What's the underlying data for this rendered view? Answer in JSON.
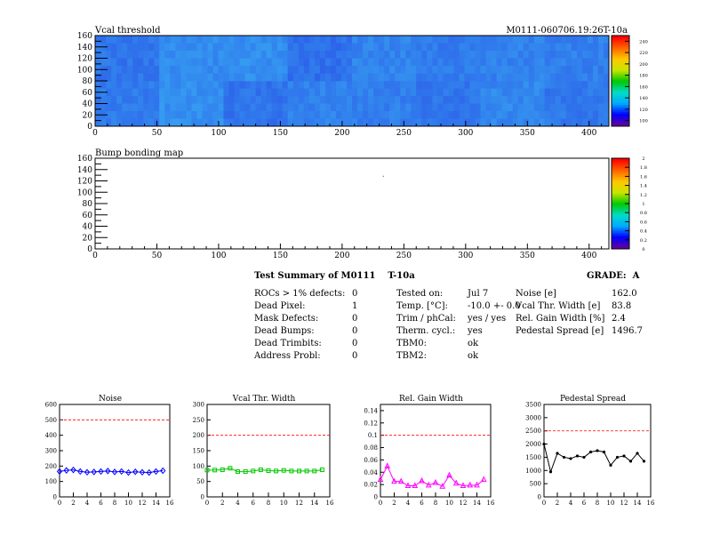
{
  "header": {
    "panel1_title": "Vcal threshold",
    "module_label": "M0111-060706.19:26T-10a",
    "panel2_title": "Bump bonding map"
  },
  "summary": {
    "title": "Test Summary of M0111",
    "test_tag": "T-10a",
    "grade_label": "GRADE:",
    "grade_value": "A",
    "col1": [
      {
        "label": "ROCs > 1% defects:",
        "value": "0"
      },
      {
        "label": "Dead Pixel:",
        "value": "1"
      },
      {
        "label": "Mask Defects:",
        "value": "0"
      },
      {
        "label": "Dead Bumps:",
        "value": "0"
      },
      {
        "label": "Dead Trimbits:",
        "value": "0"
      },
      {
        "label": "Address Probl:",
        "value": "0"
      }
    ],
    "col2": [
      {
        "label": "Tested on:",
        "value": "Jul 7"
      },
      {
        "label": "Temp. [°C]:",
        "value": "-10.0 +- 0.0"
      },
      {
        "label": "Trim / phCal:",
        "value": "yes / yes"
      },
      {
        "label": "Therm. cycl.:",
        "value": "yes"
      },
      {
        "label": "TBM0:",
        "value": "ok"
      },
      {
        "label": "TBM2:",
        "value": "ok"
      }
    ],
    "col3": [
      {
        "label": "Noise [e]",
        "value": "162.0"
      },
      {
        "label": "Vcal Thr. Width [e]",
        "value": "83.8"
      },
      {
        "label": "Rel. Gain Width [%]",
        "value": "2.4"
      },
      {
        "label": "Pedestal Spread [e]",
        "value": "1496.7"
      }
    ]
  },
  "chart_data": [
    {
      "type": "heatmap",
      "title": "Vcal threshold",
      "xlim": [
        0,
        416
      ],
      "ylim": [
        0,
        160
      ],
      "xticks": [
        "0",
        "50",
        "100",
        "150",
        "200",
        "250",
        "300",
        "350",
        "400"
      ],
      "yticks": [
        "0",
        "20",
        "40",
        "60",
        "80",
        "100",
        "120",
        "140",
        "160"
      ],
      "roc_grid": {
        "columns": 8,
        "rows": 2
      },
      "roc_intensity": [
        [
          0.45,
          0.62,
          0.38,
          0.5,
          0.48,
          0.4,
          0.55,
          0.42
        ],
        [
          0.4,
          0.58,
          0.6,
          0.35,
          0.52,
          0.45,
          0.5,
          0.48
        ]
      ],
      "colorbar_ticks": [
        "240",
        "220",
        "200",
        "180",
        "160",
        "140",
        "120",
        "100"
      ],
      "colorbar_range": [
        90,
        250
      ]
    },
    {
      "type": "heatmap",
      "title": "Bump bonding map",
      "xlim": [
        0,
        416
      ],
      "ylim": [
        0,
        160
      ],
      "xticks": [
        "0",
        "50",
        "100",
        "150",
        "200",
        "250",
        "300",
        "350",
        "400"
      ],
      "yticks": [
        "0",
        "20",
        "40",
        "60",
        "80",
        "100",
        "120",
        "140",
        "160"
      ],
      "points": [
        [
          233,
          129
        ]
      ],
      "colorbar_ticks": [
        "2",
        "1.8",
        "1.6",
        "1.4",
        "1.2",
        "1",
        "0.8",
        "0.6",
        "0.4",
        "0.2",
        "0"
      ],
      "colorbar_range": [
        0,
        2
      ]
    },
    {
      "type": "line",
      "title": "Noise",
      "color": "#0000ff",
      "marker": "diamond",
      "xlim": [
        0,
        16
      ],
      "ylim": [
        0,
        600
      ],
      "xticks": [
        "0",
        "2",
        "4",
        "6",
        "8",
        "10",
        "12",
        "14",
        "16"
      ],
      "yticks": [
        "0",
        "100",
        "200",
        "300",
        "400",
        "500",
        "600"
      ],
      "threshold": 500,
      "x": [
        0,
        1,
        2,
        3,
        4,
        5,
        6,
        7,
        8,
        9,
        10,
        11,
        12,
        13,
        14,
        15
      ],
      "values": [
        165,
        172,
        175,
        165,
        160,
        162,
        165,
        168,
        162,
        165,
        158,
        163,
        160,
        158,
        165,
        170
      ]
    },
    {
      "type": "line",
      "title": "Vcal Thr. Width",
      "color": "#00c800",
      "marker": "square",
      "xlim": [
        0,
        16
      ],
      "ylim": [
        0,
        300
      ],
      "xticks": [
        "0",
        "2",
        "4",
        "6",
        "8",
        "10",
        "12",
        "14",
        "16"
      ],
      "yticks": [
        "0",
        "50",
        "100",
        "150",
        "200",
        "250",
        "300"
      ],
      "threshold": 200,
      "x": [
        0,
        1,
        2,
        3,
        4,
        5,
        6,
        7,
        8,
        9,
        10,
        11,
        12,
        13,
        14,
        15
      ],
      "values": [
        87,
        87,
        88,
        93,
        82,
        82,
        84,
        88,
        85,
        84,
        86,
        84,
        84,
        84,
        84,
        88
      ]
    },
    {
      "type": "line",
      "title": "Rel. Gain Width",
      "color": "#ff00ff",
      "marker": "triangle",
      "xlim": [
        0,
        16
      ],
      "ylim": [
        0,
        0.15
      ],
      "xticks": [
        "0",
        "2",
        "4",
        "6",
        "8",
        "10",
        "12",
        "14",
        "16"
      ],
      "yticks": [
        "0",
        "0.02",
        "0.04",
        "0.06",
        "0.08",
        "0.1",
        "0.12",
        "0.14"
      ],
      "threshold": 0.1,
      "x": [
        0,
        1,
        2,
        3,
        4,
        5,
        6,
        7,
        8,
        9,
        10,
        11,
        12,
        13,
        14,
        15
      ],
      "values": [
        0.028,
        0.05,
        0.025,
        0.025,
        0.018,
        0.018,
        0.026,
        0.019,
        0.023,
        0.017,
        0.035,
        0.022,
        0.018,
        0.019,
        0.019,
        0.028
      ]
    },
    {
      "type": "line",
      "title": "Pedestal Spread",
      "color": "#000000",
      "marker": "dot",
      "xlim": [
        0,
        16
      ],
      "ylim": [
        0,
        3500
      ],
      "xticks": [
        "0",
        "2",
        "4",
        "6",
        "8",
        "10",
        "12",
        "14",
        "16"
      ],
      "yticks": [
        "0",
        "500",
        "1000",
        "1500",
        "2000",
        "2500",
        "3000",
        "3500"
      ],
      "threshold": 2500,
      "x": [
        0,
        1,
        2,
        3,
        4,
        5,
        6,
        7,
        8,
        9,
        10,
        11,
        12,
        13,
        14,
        15
      ],
      "values": [
        2000,
        950,
        1650,
        1500,
        1450,
        1550,
        1500,
        1700,
        1750,
        1700,
        1200,
        1500,
        1550,
        1350,
        1650,
        1350
      ]
    }
  ]
}
